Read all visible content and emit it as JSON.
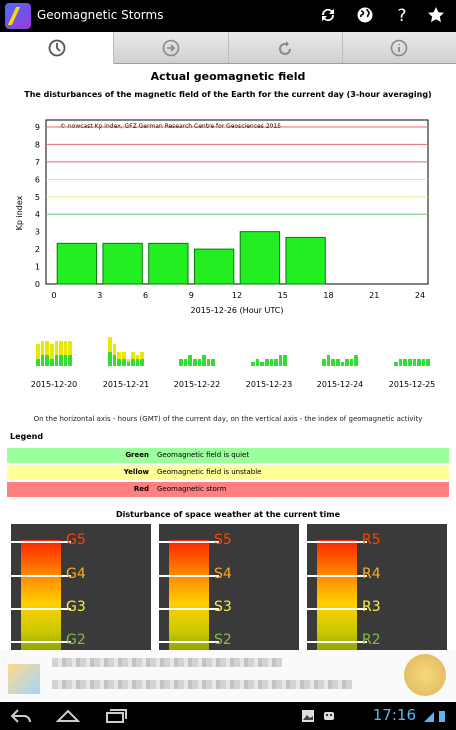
{
  "app": {
    "title": "Geomagnetic Storms"
  },
  "topbar_icons": [
    "refresh-icon",
    "globe-icon",
    "help-icon",
    "star-icon"
  ],
  "topbar_help_glyph": "?",
  "tabs": [
    {
      "name": "tab-clock",
      "icon": "clock-icon"
    },
    {
      "name": "tab-forward",
      "icon": "arrow-right-circle-icon"
    },
    {
      "name": "tab-refresh",
      "icon": "reload-icon"
    },
    {
      "name": "tab-info",
      "icon": "info-icon"
    }
  ],
  "main": {
    "title": "Actual geomagnetic field",
    "subtitle": "The disturbances of the magnetic field of the Earth for the current day (3-hour averaging)"
  },
  "chart_data": {
    "type": "bar",
    "title": "",
    "annotation": "© nowcast Kp index, GFZ German Research Centre for Geosciences 2015",
    "xlabel": "2015-12-26 (Hour UTC)",
    "ylabel": "Kp index",
    "x_ticks": [
      "0",
      "3",
      "6",
      "9",
      "12",
      "15",
      "18",
      "21",
      "24"
    ],
    "y_ticks": [
      "0",
      "1",
      "2",
      "3",
      "4",
      "5",
      "6",
      "7",
      "8",
      "9"
    ],
    "ylim": [
      0,
      9
    ],
    "xlim": [
      0,
      24
    ],
    "bars": [
      {
        "x": 1.5,
        "value": 2.33
      },
      {
        "x": 4.5,
        "value": 2.33
      },
      {
        "x": 7.5,
        "value": 2.33
      },
      {
        "x": 10.5,
        "value": 2.0
      },
      {
        "x": 13.5,
        "value": 3.0
      },
      {
        "x": 16.5,
        "value": 2.67
      }
    ],
    "threshold_lines": [
      {
        "value": 4,
        "color": "#66cc66"
      },
      {
        "value": 5,
        "color": "#e8e8a0"
      },
      {
        "value": 6,
        "color": "#e0e0a0"
      },
      {
        "value": 7,
        "color": "#ee6666"
      },
      {
        "value": 8,
        "color": "#ee6666"
      },
      {
        "value": 9,
        "color": "#ee6666"
      }
    ],
    "bar_color": "#22ee22"
  },
  "history": [
    {
      "date": "2015-12-20",
      "bars": [
        [
          2,
          4
        ],
        [
          3,
          4
        ],
        [
          3,
          4
        ],
        [
          2,
          4
        ],
        [
          3,
          4
        ],
        [
          3,
          4
        ],
        [
          3,
          4
        ],
        [
          3,
          4
        ]
      ]
    },
    {
      "date": "2015-12-21",
      "bars": [
        [
          4,
          4
        ],
        [
          3,
          3
        ],
        [
          2,
          2
        ],
        [
          2,
          2
        ],
        [
          1,
          1
        ],
        [
          2,
          2
        ],
        [
          2,
          1
        ],
        [
          2,
          2
        ]
      ]
    },
    {
      "date": "2015-12-22",
      "bars": [
        [
          2,
          0
        ],
        [
          2,
          0
        ],
        [
          3,
          0
        ],
        [
          2,
          0
        ],
        [
          2,
          0
        ],
        [
          3,
          0
        ],
        [
          2,
          0
        ],
        [
          2,
          0
        ]
      ]
    },
    {
      "date": "2015-12-23",
      "bars": [
        [
          1,
          0
        ],
        [
          2,
          0
        ],
        [
          1,
          0
        ],
        [
          2,
          0
        ],
        [
          2,
          0
        ],
        [
          2,
          0
        ],
        [
          3,
          0
        ],
        [
          3,
          0
        ]
      ]
    },
    {
      "date": "2015-12-24",
      "bars": [
        [
          2,
          0
        ],
        [
          3,
          0
        ],
        [
          2,
          0
        ],
        [
          2,
          0
        ],
        [
          1,
          0
        ],
        [
          2,
          0
        ],
        [
          2,
          0
        ],
        [
          3,
          0
        ]
      ]
    },
    {
      "date": "2015-12-25",
      "bars": [
        [
          1,
          0
        ],
        [
          2,
          0
        ],
        [
          2,
          0
        ],
        [
          2,
          0
        ],
        [
          2,
          0
        ],
        [
          2,
          0
        ],
        [
          2,
          0
        ],
        [
          2,
          0
        ]
      ]
    }
  ],
  "note": "On the horizontal axis - hours (GMT) of the current day, on the vertical axis - the index of geomagnetic activity",
  "legend": {
    "title": "Legend",
    "rows": [
      {
        "key": "Green",
        "value": "Geomagnetic field is quiet",
        "color": "#9bff9b"
      },
      {
        "key": "Yellow",
        "value": "Geomagnetic field is unstable",
        "color": "#ffff99"
      },
      {
        "key": "Red",
        "value": "Geomagnetic storm",
        "color": "#ff8080"
      }
    ]
  },
  "space_weather": {
    "title": "Disturbance of space weather at the current time",
    "panels": [
      {
        "labels": [
          "G5",
          "G4",
          "G3",
          "G2"
        ],
        "colors": [
          "#ff4400",
          "#ffaa22",
          "#ffee44",
          "#88bb44"
        ]
      },
      {
        "labels": [
          "S5",
          "S4",
          "S3",
          "S2"
        ],
        "colors": [
          "#ff4400",
          "#ffaa22",
          "#ffee44",
          "#88bb44"
        ]
      },
      {
        "labels": [
          "R5",
          "R4",
          "R3",
          "R2"
        ],
        "colors": [
          "#ff4400",
          "#ffaa22",
          "#ffee44",
          "#88bb44"
        ]
      }
    ]
  },
  "statusbar": {
    "time": "17:16"
  }
}
